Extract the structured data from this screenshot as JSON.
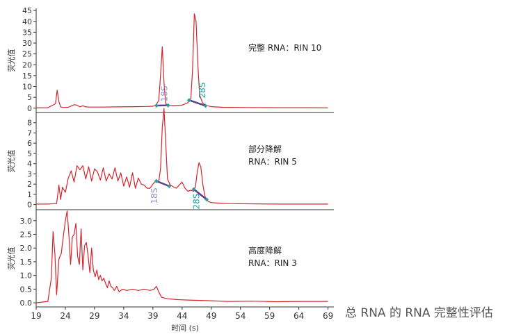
{
  "caption": "总 RNA 的 RNA 完整性评估",
  "colors": {
    "trace": "#d6232b",
    "baseline": "#5a3e8a",
    "marker_18s": "#8f92c8",
    "marker_28s": "#16a3a3",
    "axis": "#333333"
  },
  "chart_data": [
    {
      "type": "line",
      "annotation": [
        "完整 RNA：RIN 10"
      ],
      "xlabel": "",
      "ylabel": "荧光值",
      "xlim": [
        19,
        70
      ],
      "ylim": [
        -2,
        46
      ],
      "yticks": [
        0,
        5,
        10,
        15,
        20,
        25,
        30,
        35,
        40,
        45
      ],
      "markers": [
        {
          "label": "18S",
          "x": 41
        },
        {
          "label": "28S",
          "x": 47.5
        }
      ],
      "baselines": [
        {
          "x1": 39.6,
          "y1": 1.2,
          "x2": 41.6,
          "y2": 1.3
        },
        {
          "x1": 45.2,
          "y1": 3.7,
          "x2": 48.0,
          "y2": 1.1
        }
      ],
      "series": [
        {
          "x": [
            19,
            21,
            22.3,
            22.6,
            22.9,
            23.2,
            23.6,
            24.5,
            25.5,
            26,
            26.5,
            27,
            27.5,
            28,
            30,
            33,
            36,
            38,
            39,
            39.5,
            40,
            40.3,
            40.6,
            40.9,
            41.2,
            41.6,
            42.5,
            44,
            45,
            45.5,
            45.8,
            46.1,
            46.4,
            46.7,
            47,
            47.5,
            48,
            49,
            51,
            55,
            60,
            65,
            69
          ],
          "y": [
            0.1,
            0.2,
            2,
            8.3,
            3,
            0.6,
            0.3,
            0.4,
            1.6,
            1.4,
            0.6,
            1.1,
            0.6,
            0.5,
            0.5,
            0.6,
            0.7,
            0.8,
            0.9,
            1.3,
            3.5,
            15,
            28.3,
            12,
            2,
            1.3,
            1.2,
            1.4,
            2.5,
            4.5,
            18,
            43.5,
            40,
            20,
            6,
            2.5,
            1.3,
            0.7,
            0.4,
            0.3,
            0.2,
            0.2,
            0.1
          ]
        }
      ]
    },
    {
      "type": "line",
      "annotation": [
        "部分降解",
        "RNA：RIN 5"
      ],
      "xlabel": "",
      "ylabel": "荧光值",
      "xlim": [
        19,
        70
      ],
      "ylim": [
        -0.5,
        9
      ],
      "yticks": [
        0,
        1,
        2,
        3,
        4,
        5,
        6,
        7,
        8
      ],
      "markers": [
        {
          "label": "18S",
          "x": 40
        },
        {
          "label": "28S",
          "x": 47.2
        }
      ],
      "baselines": [
        {
          "x1": 39.6,
          "y1": 2.3,
          "x2": 41.8,
          "y2": 1.8
        },
        {
          "x1": 46,
          "y1": 1.5,
          "x2": 48.2,
          "y2": 0.5
        }
      ],
      "series": [
        {
          "x": [
            19,
            21,
            22.5,
            22.9,
            23.2,
            23.5,
            24,
            24.5,
            25,
            25.5,
            26,
            26.5,
            27,
            27.5,
            28,
            28.5,
            29,
            29.5,
            30,
            30.5,
            31,
            31.5,
            32,
            32.5,
            33,
            33.5,
            34,
            34.5,
            35,
            35.5,
            36,
            36.5,
            37,
            37.5,
            38,
            38.5,
            39,
            39.5,
            40,
            40.3,
            40.6,
            40.9,
            41.2,
            41.5,
            42,
            43,
            44,
            44.5,
            45,
            45.5,
            46,
            46.3,
            46.6,
            46.9,
            47.2,
            47.6,
            48,
            48.5,
            49,
            50,
            52,
            55,
            60,
            65,
            69
          ],
          "y": [
            0.05,
            0.05,
            0.1,
            1.9,
            0.5,
            1.7,
            1.2,
            2.6,
            3.3,
            2.2,
            3.8,
            3.4,
            3.8,
            2.5,
            3.7,
            2.3,
            3.5,
            3.2,
            2.4,
            3.6,
            2.3,
            3.0,
            2.5,
            3.6,
            2.3,
            3.1,
            1.8,
            2.7,
            1.7,
            3.1,
            1.6,
            2.6,
            2.0,
            1.9,
            1.6,
            1.6,
            2.0,
            2.3,
            2.2,
            3.5,
            7.5,
            9.4,
            6,
            2.5,
            1.9,
            1.6,
            2.2,
            1.6,
            1.3,
            1.4,
            1.3,
            1.8,
            3.2,
            4.1,
            3.7,
            1.8,
            0.6,
            0.3,
            0.2,
            0.15,
            0.1,
            0.08,
            0.05,
            0.05,
            0.05
          ]
        }
      ]
    },
    {
      "type": "line",
      "annotation": [
        "高度降解",
        "RNA：RIN 3"
      ],
      "xlabel": "时间 (s)",
      "ylabel": "荧光值",
      "xlim": [
        19,
        70
      ],
      "ylim": [
        -0.15,
        3.4
      ],
      "xticks": [
        19,
        24,
        29,
        34,
        39,
        44,
        49,
        54,
        59,
        64,
        69
      ],
      "yticks": [
        0,
        0.5,
        1.0,
        1.5,
        2.0,
        2.5,
        3.0
      ],
      "markers": [],
      "baselines": [],
      "series": [
        {
          "x": [
            19,
            21,
            21.6,
            21.9,
            22.2,
            22.5,
            22.9,
            23.3,
            23.7,
            24,
            24.3,
            24.6,
            24.9,
            25.2,
            25.5,
            25.8,
            26.1,
            26.4,
            26.7,
            27,
            27.3,
            27.6,
            27.9,
            28.2,
            28.5,
            28.8,
            29.1,
            29.4,
            29.7,
            30,
            30.3,
            30.6,
            30.9,
            31.2,
            31.5,
            31.8,
            32.1,
            32.4,
            32.8,
            33.2,
            33.8,
            34.5,
            35.5,
            36.5,
            37.5,
            38.5,
            39.2,
            39.6,
            40,
            40.5,
            41.5,
            43,
            45,
            48,
            52,
            56,
            60,
            64,
            69
          ],
          "y": [
            0.0,
            0.05,
            0.9,
            2.6,
            1.8,
            0.3,
            1.6,
            1.8,
            2.5,
            3.0,
            3.35,
            2.5,
            1.4,
            2.4,
            2.5,
            2.9,
            1.7,
            1.4,
            2.7,
            1.2,
            2.1,
            2.2,
            1.7,
            1.1,
            2.0,
            1.2,
            0.95,
            1.2,
            0.85,
            1.0,
            0.8,
            0.9,
            0.7,
            0.55,
            0.8,
            0.6,
            0.55,
            0.45,
            0.6,
            0.4,
            0.5,
            0.45,
            0.5,
            0.45,
            0.5,
            0.45,
            0.5,
            0.6,
            0.4,
            0.2,
            0.15,
            0.12,
            0.1,
            0.08,
            0.05,
            0.06,
            0.04,
            0.05,
            0.05
          ]
        }
      ]
    }
  ]
}
